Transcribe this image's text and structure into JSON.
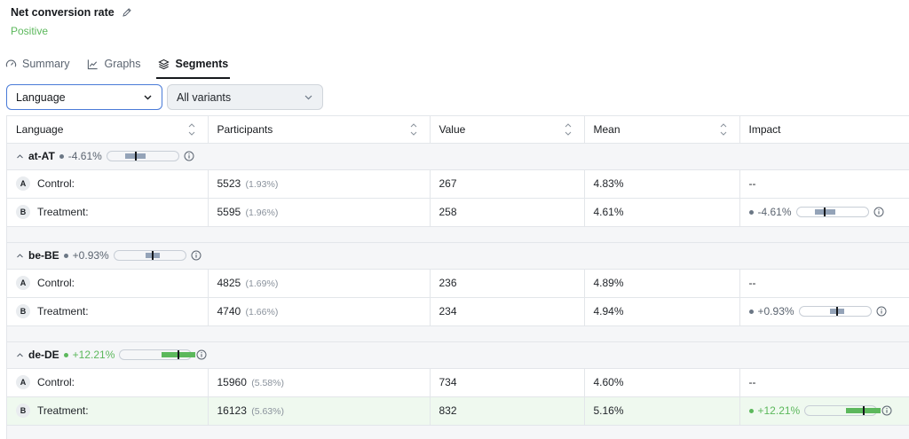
{
  "metric": {
    "title": "Net conversion rate",
    "status": "Positive"
  },
  "tabs": [
    {
      "label": "Summary",
      "icon": "gauge-icon"
    },
    {
      "label": "Graphs",
      "icon": "line-chart-icon"
    },
    {
      "label": "Segments",
      "icon": "layers-icon",
      "active": true
    }
  ],
  "filters": {
    "dimension": "Language",
    "variants": "All variants"
  },
  "columns": {
    "language": "Language",
    "participants": "Participants",
    "value": "Value",
    "mean": "Mean",
    "impact": "Impact"
  },
  "groups": [
    {
      "name": "at-AT",
      "impact": "-4.61%",
      "tone": "neutral",
      "impact_fraction": -0.0461,
      "rows": [
        {
          "badge": "A",
          "variant": "Control:",
          "participants": "5523",
          "share": "(1.93%)",
          "value": "267",
          "mean": "4.83%",
          "impact": "--"
        },
        {
          "badge": "B",
          "variant": "Treatment:",
          "participants": "5595",
          "share": "(1.96%)",
          "value": "258",
          "mean": "4.61%",
          "impact": "-4.61%"
        }
      ]
    },
    {
      "name": "be-BE",
      "impact": "+0.93%",
      "tone": "neutral",
      "impact_fraction": 0.0093,
      "rows": [
        {
          "badge": "A",
          "variant": "Control:",
          "participants": "4825",
          "share": "(1.69%)",
          "value": "236",
          "mean": "4.89%",
          "impact": "--"
        },
        {
          "badge": "B",
          "variant": "Treatment:",
          "participants": "4740",
          "share": "(1.66%)",
          "value": "234",
          "mean": "4.94%",
          "impact": "+0.93%"
        }
      ]
    },
    {
      "name": "de-DE",
      "impact": "+12.21%",
      "tone": "pos",
      "impact_fraction": 0.1221,
      "rows": [
        {
          "badge": "A",
          "variant": "Control:",
          "participants": "15960",
          "share": "(5.58%)",
          "value": "734",
          "mean": "4.60%",
          "impact": "--"
        },
        {
          "badge": "B",
          "variant": "Treatment:",
          "participants": "16123",
          "share": "(5.63%)",
          "value": "832",
          "mean": "5.16%",
          "impact": "+12.21%",
          "highlight": true
        }
      ]
    }
  ],
  "colors": {
    "positive": "#5cb85c",
    "neutral": "#94a3b8",
    "accent": "#4a7bd8"
  }
}
